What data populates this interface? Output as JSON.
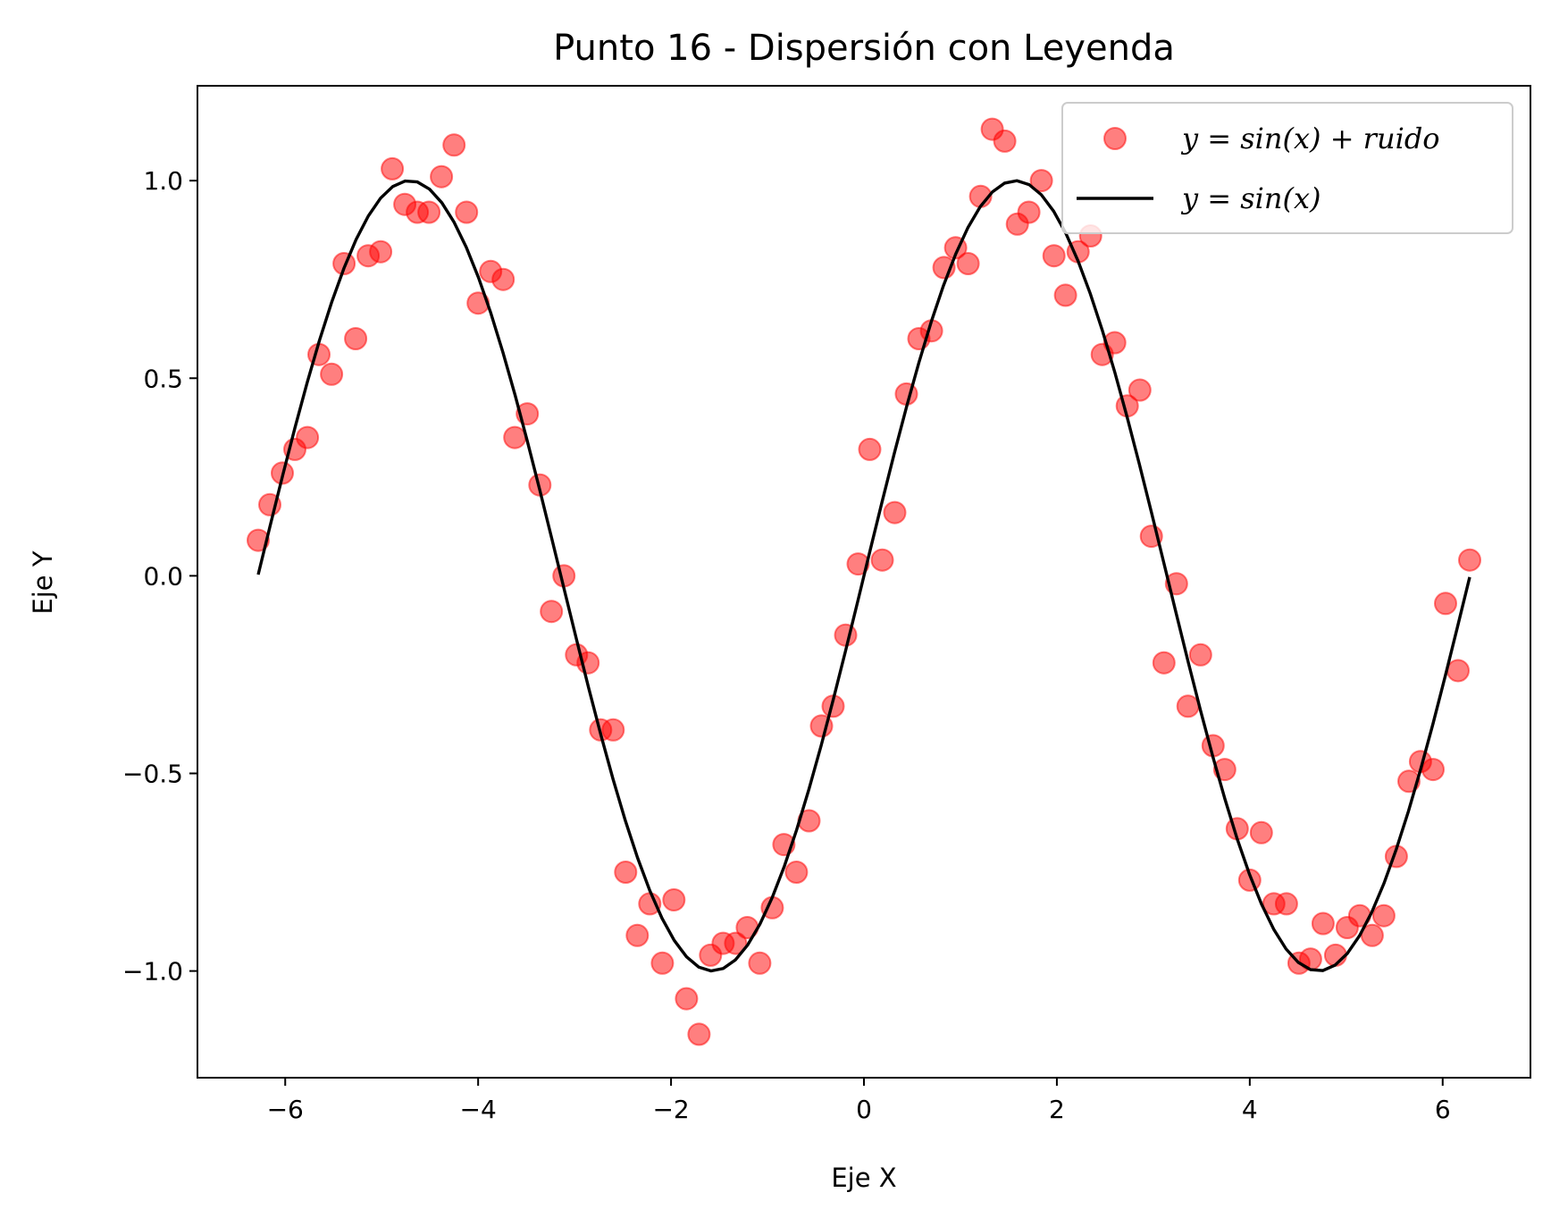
{
  "chart_data": {
    "type": "scatter",
    "title": "Punto 16 - Dispersión con Leyenda",
    "xlabel": "Eje X",
    "ylabel": "Eje Y",
    "xlim": [
      -6.91,
      6.91
    ],
    "ylim": [
      -1.27,
      1.24
    ],
    "xticks": [
      -6,
      -4,
      -2,
      0,
      2,
      4,
      6
    ],
    "xtick_labels": [
      "−6",
      "−4",
      "−2",
      "0",
      "2",
      "4",
      "6"
    ],
    "yticks": [
      -1.0,
      -0.5,
      0.0,
      0.5,
      1.0
    ],
    "ytick_labels": [
      "−1.0",
      "−0.5",
      "0.0",
      "0.5",
      "1.0"
    ],
    "grid": false,
    "legend_position": "top-right",
    "colors": {
      "scatter": "#ff0000",
      "line": "#000000"
    },
    "series": [
      {
        "name": "y = sin(x) + ruido",
        "kind": "scatter",
        "x": [
          -6.28,
          -6.16,
          -6.03,
          -5.9,
          -5.77,
          -5.65,
          -5.52,
          -5.39,
          -5.27,
          -5.14,
          -5.01,
          -4.89,
          -4.76,
          -4.63,
          -4.51,
          -4.38,
          -4.25,
          -4.12,
          -4.0,
          -3.87,
          -3.74,
          -3.62,
          -3.49,
          -3.36,
          -3.24,
          -3.11,
          -2.98,
          -2.86,
          -2.73,
          -2.6,
          -2.47,
          -2.35,
          -2.22,
          -2.09,
          -1.97,
          -1.84,
          -1.71,
          -1.59,
          -1.46,
          -1.33,
          -1.21,
          -1.08,
          -0.95,
          -0.83,
          -0.7,
          -0.57,
          -0.44,
          -0.32,
          -0.19,
          -0.06,
          0.06,
          0.19,
          0.32,
          0.44,
          0.57,
          0.7,
          0.83,
          0.95,
          1.08,
          1.21,
          1.33,
          1.46,
          1.59,
          1.71,
          1.84,
          1.97,
          2.09,
          2.22,
          2.35,
          2.47,
          2.6,
          2.73,
          2.86,
          2.98,
          3.11,
          3.24,
          3.36,
          3.49,
          3.62,
          3.74,
          3.87,
          4.0,
          4.12,
          4.25,
          4.38,
          4.51,
          4.63,
          4.76,
          4.89,
          5.01,
          5.14,
          5.27,
          5.39,
          5.52,
          5.65,
          5.77,
          5.9,
          6.03,
          6.16,
          6.28
        ],
        "y": [
          0.09,
          0.18,
          0.26,
          0.32,
          0.35,
          0.56,
          0.51,
          0.79,
          0.6,
          0.81,
          0.82,
          1.03,
          0.94,
          0.92,
          0.92,
          1.01,
          1.09,
          0.92,
          0.69,
          0.77,
          0.75,
          0.35,
          0.41,
          0.23,
          -0.09,
          0.0,
          -0.2,
          -0.22,
          -0.39,
          -0.39,
          -0.75,
          -0.91,
          -0.83,
          -0.98,
          -0.82,
          -1.07,
          -1.16,
          -0.96,
          -0.93,
          -0.93,
          -0.89,
          -0.98,
          -0.84,
          -0.68,
          -0.75,
          -0.62,
          -0.38,
          -0.33,
          -0.15,
          0.03,
          0.32,
          0.04,
          0.16,
          0.46,
          0.6,
          0.62,
          0.78,
          0.83,
          0.79,
          0.96,
          1.13,
          1.1,
          0.89,
          0.92,
          1.0,
          0.81,
          0.71,
          0.82,
          0.86,
          0.56,
          0.59,
          0.43,
          0.47,
          0.1,
          -0.22,
          -0.02,
          -0.33,
          -0.2,
          -0.43,
          -0.49,
          -0.64,
          -0.77,
          -0.65,
          -0.83,
          -0.83,
          -0.98,
          -0.97,
          -0.88,
          -0.96,
          -0.89,
          -0.86,
          -0.91,
          -0.86,
          -0.71,
          -0.52,
          -0.47,
          -0.49,
          -0.07,
          -0.24,
          0.04
        ]
      },
      {
        "name": "y = sin(x)",
        "kind": "line",
        "function": "sin(x)",
        "x_range": [
          -6.28,
          6.28
        ],
        "samples": 100
      }
    ],
    "legend": [
      {
        "label": "y = sin(x) + ruido",
        "marker": "circle"
      },
      {
        "label": "y = sin(x)",
        "marker": "line"
      }
    ]
  }
}
